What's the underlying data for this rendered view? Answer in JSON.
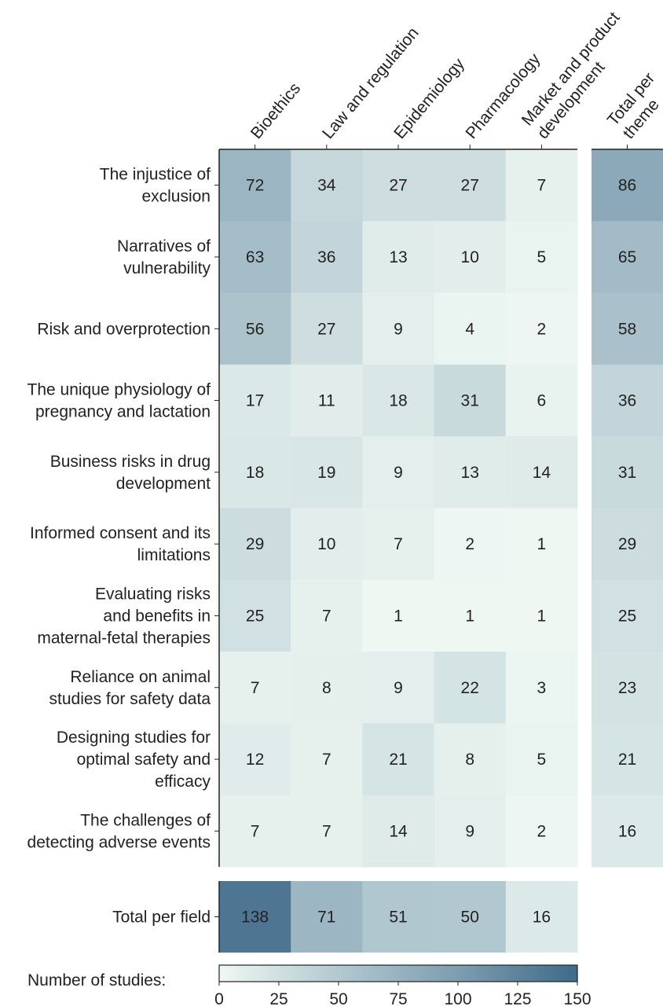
{
  "chart_data": {
    "type": "heatmap",
    "columns": [
      "Bioethics",
      "Law and regulation",
      "Epidemiology",
      "Pharmacology",
      "Market and product development"
    ],
    "rows": [
      "The injustice of exclusion",
      "Narratives of vulnerability",
      "Risk and overprotection",
      "The unique physiology of pregnancy and lactation",
      "Business risks in drug development",
      "Informed consent and its limitations",
      "Evaluating risks and benefits in maternal-fetal therapies",
      "Reliance on animal studies for safety data",
      "Designing studies for optimal safety and efficacy",
      "The challenges of detecting adverse events"
    ],
    "row_label_lines": [
      [
        "The injustice of",
        "exclusion"
      ],
      [
        "Narratives of",
        "vulnerability"
      ],
      [
        "Risk and overprotection"
      ],
      [
        "The unique physiology of",
        "pregnancy and lactation"
      ],
      [
        "Business risks in drug",
        "development"
      ],
      [
        "Informed consent and its",
        "limitations"
      ],
      [
        "Evaluating risks",
        "and benefits in",
        "maternal-fetal therapies"
      ],
      [
        "Reliance on animal",
        "studies for safety data"
      ],
      [
        "Designing studies for",
        "optimal safety and",
        "efficacy"
      ],
      [
        "The challenges of",
        "detecting adverse events"
      ]
    ],
    "column_label_lines": [
      [
        "Bioethics"
      ],
      [
        "Law and regulation"
      ],
      [
        "Epidemiology"
      ],
      [
        "Pharmacology"
      ],
      [
        "Market and product",
        "development"
      ]
    ],
    "values": [
      [
        72,
        34,
        27,
        27,
        7
      ],
      [
        63,
        36,
        13,
        10,
        5
      ],
      [
        56,
        27,
        9,
        4,
        2
      ],
      [
        17,
        11,
        18,
        31,
        6
      ],
      [
        18,
        19,
        9,
        13,
        14
      ],
      [
        29,
        10,
        7,
        2,
        1
      ],
      [
        25,
        7,
        1,
        1,
        1
      ],
      [
        7,
        8,
        9,
        22,
        3
      ],
      [
        12,
        7,
        21,
        8,
        5
      ],
      [
        7,
        7,
        14,
        9,
        2
      ]
    ],
    "total_per_theme": {
      "label_lines": [
        "Total per",
        "theme"
      ],
      "values": [
        86,
        65,
        58,
        36,
        31,
        29,
        25,
        23,
        21,
        16
      ]
    },
    "total_per_field": {
      "label": "Total per field",
      "values": [
        138,
        71,
        51,
        50,
        16
      ]
    },
    "colorbar": {
      "label": "Number of studies:",
      "range": [
        0,
        150
      ],
      "ticks": [
        0,
        25,
        50,
        75,
        100,
        125,
        150
      ],
      "colors": [
        "#eff8f3",
        "#b2c8d0",
        "#7d9db1",
        "#3f6a89"
      ]
    }
  }
}
